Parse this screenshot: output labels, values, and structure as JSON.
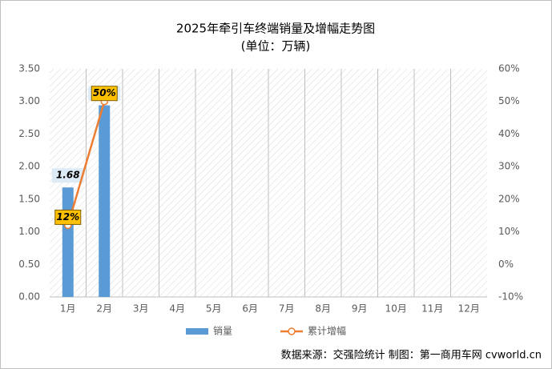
{
  "chart_data": {
    "type": "bar",
    "title": "2025年牵引车终端销量及增幅走势图",
    "subtitle": "(单位：万辆)",
    "categories": [
      "1月",
      "2月",
      "3月",
      "4月",
      "5月",
      "6月",
      "7月",
      "8月",
      "9月",
      "10月",
      "11月",
      "12月"
    ],
    "series": [
      {
        "name": "销量",
        "type": "bar",
        "color": "#5b9bd5",
        "values": [
          1.68,
          2.94,
          null,
          null,
          null,
          null,
          null,
          null,
          null,
          null,
          null,
          null
        ]
      },
      {
        "name": "累计增幅",
        "type": "line",
        "axis": "y2",
        "color": "#ed7d31",
        "values": [
          12,
          50,
          null,
          null,
          null,
          null,
          null,
          null,
          null,
          null,
          null,
          null
        ],
        "value_labels": [
          "12%",
          "50%",
          null,
          null,
          null,
          null,
          null,
          null,
          null,
          null,
          null,
          null
        ]
      }
    ],
    "ylim": [
      0,
      3.5
    ],
    "yticks": [
      {
        "value": 0,
        "label": "0.00"
      },
      {
        "value": 0.5,
        "label": "0.50"
      },
      {
        "value": 1,
        "label": "1.00"
      },
      {
        "value": 1.5,
        "label": "1.50"
      },
      {
        "value": 2,
        "label": "2.00"
      },
      {
        "value": 2.5,
        "label": "2.50"
      },
      {
        "value": 3,
        "label": "3.00"
      },
      {
        "value": 3.5,
        "label": "3.50"
      }
    ],
    "y2lim": [
      -10,
      60
    ],
    "y2ticks": [
      {
        "value": -10,
        "label": "-10%"
      },
      {
        "value": 0,
        "label": "0%"
      },
      {
        "value": 10,
        "label": "10%"
      },
      {
        "value": 20,
        "label": "20%"
      },
      {
        "value": 30,
        "label": "30%"
      },
      {
        "value": 40,
        "label": "40%"
      },
      {
        "value": 50,
        "label": "50%"
      },
      {
        "value": 60,
        "label": "60%"
      }
    ],
    "legend": "bottom",
    "source": "数据来源：交强险统计  制图：第一商用车网 cvworld.cn"
  }
}
